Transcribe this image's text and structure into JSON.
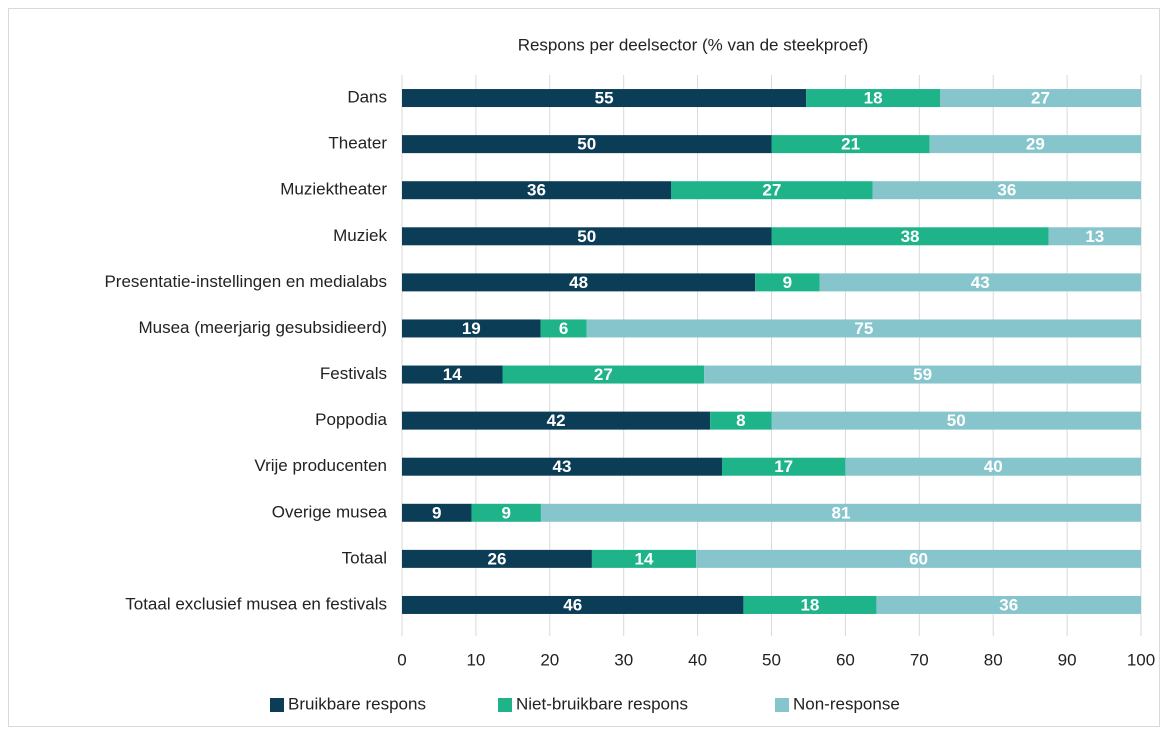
{
  "chart_data": {
    "type": "stacked_bar_horizontal",
    "title": "Respons per deelsector (% van de steekproef)",
    "categories": [
      "Dans",
      "Theater",
      "Muziektheater",
      "Muziek",
      "Presentatie-instellingen en medialabs",
      "Musea (meerjarig gesubsidieerd)",
      "Festivals",
      "Poppodia",
      "Vrije producenten",
      "Overige musea",
      "Totaal",
      "Totaal exclusief musea en festivals"
    ],
    "series": [
      {
        "name": "Bruikbare respons",
        "color": "#0b3d57",
        "values": [
          54.7,
          50,
          36.4,
          50,
          47.8,
          18.75,
          13.6,
          41.7,
          43.3,
          9.4,
          25.7,
          46.2
        ],
        "value_labels": [
          "55",
          "50",
          "36",
          "50",
          "48",
          "19",
          "14",
          "42",
          "43",
          "9",
          "26",
          "46"
        ]
      },
      {
        "name": "Niet-bruikbare respons",
        "color": "#1fb389",
        "values": [
          18.1,
          21.4,
          27.3,
          37.5,
          8.7,
          6.25,
          27.3,
          8.3,
          16.7,
          9.4,
          14.1,
          18.0
        ],
        "value_labels": [
          "18",
          "21",
          "27",
          "38",
          "9",
          "6",
          "27",
          "8",
          "17",
          "9",
          "14",
          "18"
        ]
      },
      {
        "name": "Non-response",
        "color": "#86c5cc",
        "values": [
          27.2,
          28.6,
          36.3,
          12.5,
          43.5,
          75,
          59.1,
          50,
          40,
          81.2,
          60.2,
          35.8
        ],
        "value_labels": [
          "27",
          "29",
          "36",
          "13",
          "43",
          "75",
          "59",
          "50",
          "40",
          "81",
          "60",
          "36"
        ]
      }
    ],
    "xlim": [
      0,
      100
    ],
    "xticks": [
      0,
      10,
      20,
      30,
      40,
      50,
      60,
      70,
      80,
      90,
      100
    ],
    "grid": true,
    "legend": "bottom"
  }
}
